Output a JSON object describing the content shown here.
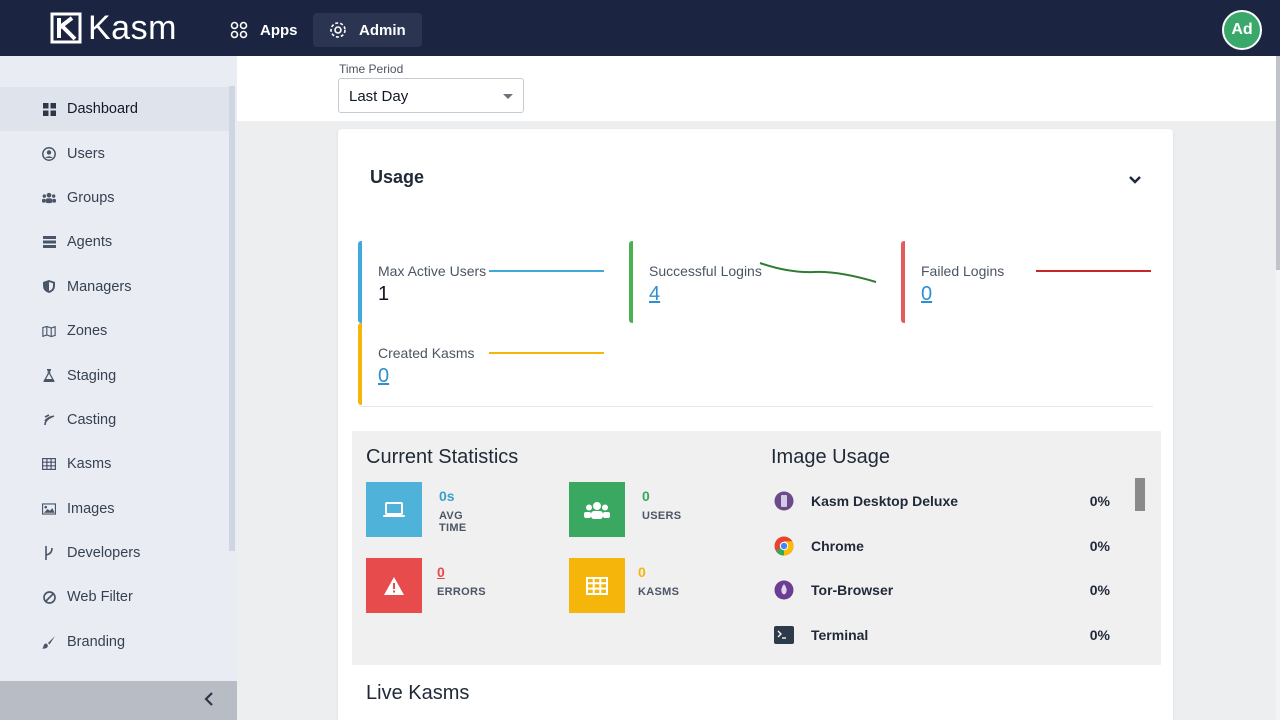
{
  "brand": {
    "name": "Kasm"
  },
  "topnav": {
    "apps_label": "Apps",
    "admin_label": "Admin",
    "avatar_initials": "Ad"
  },
  "sidebar": {
    "items": [
      {
        "label": "Dashboard",
        "icon": "dashboard-icon",
        "active": true
      },
      {
        "label": "Users",
        "icon": "user-icon"
      },
      {
        "label": "Groups",
        "icon": "groups-icon"
      },
      {
        "label": "Agents",
        "icon": "server-icon"
      },
      {
        "label": "Managers",
        "icon": "shield-icon"
      },
      {
        "label": "Zones",
        "icon": "map-icon"
      },
      {
        "label": "Staging",
        "icon": "flask-icon"
      },
      {
        "label": "Casting",
        "icon": "cast-icon"
      },
      {
        "label": "Kasms",
        "icon": "grid-icon"
      },
      {
        "label": "Images",
        "icon": "image-icon"
      },
      {
        "label": "Developers",
        "icon": "code-branch-icon"
      },
      {
        "label": "Web Filter",
        "icon": "ban-icon"
      },
      {
        "label": "Branding",
        "icon": "paintbrush-icon"
      }
    ]
  },
  "filters": {
    "time_period_label": "Time Period",
    "time_period_value": "Last Day"
  },
  "usage": {
    "title": "Usage",
    "metrics": [
      {
        "label": "Max Active Users",
        "value": "1",
        "color": "#3fa9d9"
      },
      {
        "label": "Successful Logins",
        "value": "4",
        "color": "#4caf50"
      },
      {
        "label": "Failed Logins",
        "value": "0",
        "color": "#e35b5b"
      },
      {
        "label": "Created Kasms",
        "value": "0",
        "color": "#f5b50a"
      }
    ]
  },
  "current_statistics": {
    "title": "Current Statistics",
    "items": [
      {
        "value": "0s",
        "label": "AVG TIME",
        "color": "#4fb3d9"
      },
      {
        "value": "0",
        "label": "USERS",
        "color": "#3aa860"
      },
      {
        "value": "0",
        "label": "ERRORS",
        "color": "#e84b4b"
      },
      {
        "value": "0",
        "label": "KASMS",
        "color": "#f5b50a"
      }
    ]
  },
  "image_usage": {
    "title": "Image Usage",
    "items": [
      {
        "name": "Kasm Desktop Deluxe",
        "percent": "0%",
        "icon": "desktop-deluxe-icon"
      },
      {
        "name": "Chrome",
        "percent": "0%",
        "icon": "chrome-icon"
      },
      {
        "name": "Tor-Browser",
        "percent": "0%",
        "icon": "tor-icon"
      },
      {
        "name": "Terminal",
        "percent": "0%",
        "icon": "terminal-icon"
      }
    ]
  },
  "live_kasms": {
    "title": "Live Kasms"
  }
}
